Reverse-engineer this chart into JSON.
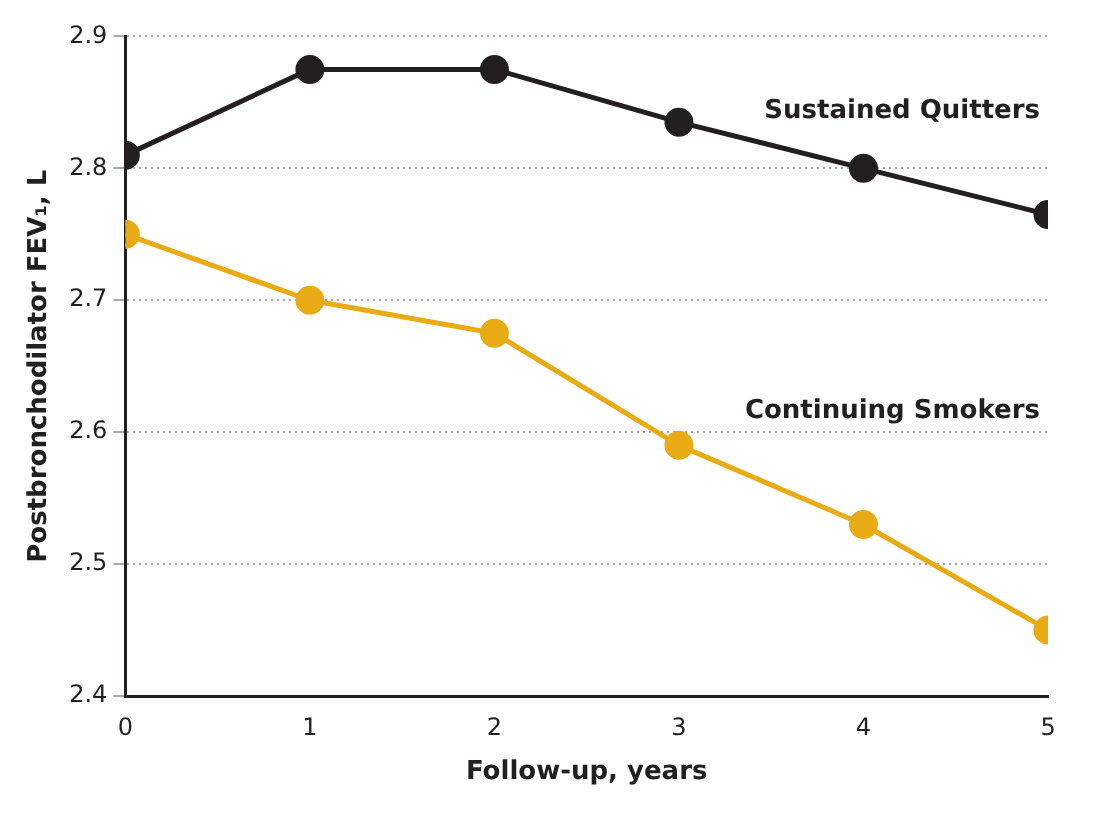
{
  "chart_data": {
    "type": "line",
    "xlabel": "Follow-up, years",
    "ylabel": "Postbronchodilator FEV₁, L",
    "x": [
      0,
      1,
      2,
      3,
      4,
      5
    ],
    "series": [
      {
        "name": "Sustained Quitters",
        "color": "#231f20",
        "values": [
          2.81,
          2.875,
          2.875,
          2.835,
          2.8,
          2.765
        ]
      },
      {
        "name": "Continuing Smokers",
        "color": "#e8ab14",
        "values": [
          2.75,
          2.7,
          2.675,
          2.59,
          2.53,
          2.45
        ]
      }
    ],
    "xlim": [
      0,
      5
    ],
    "xticks": [
      0,
      1,
      2,
      3,
      4,
      5
    ],
    "ylim": [
      2.4,
      2.9
    ],
    "yticks": [
      2.4,
      2.5,
      2.6,
      2.7,
      2.8,
      2.9
    ],
    "grid": "y",
    "legend": false,
    "marker": "circle",
    "line_style": "solid"
  }
}
